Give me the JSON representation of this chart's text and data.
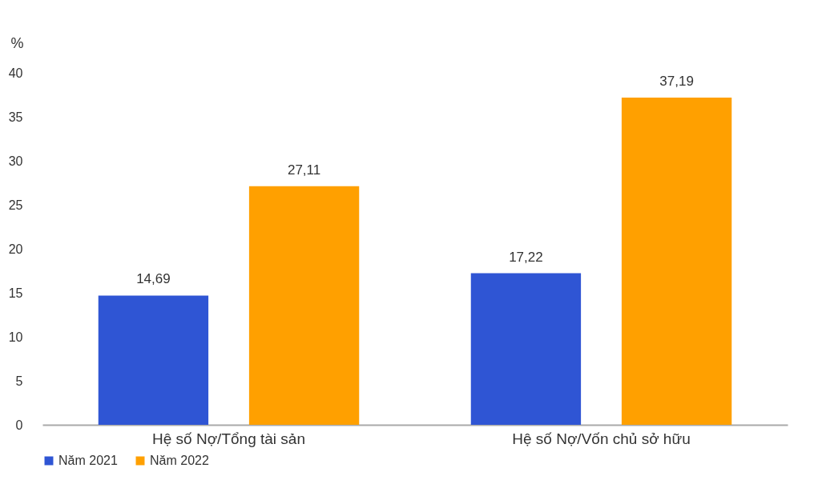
{
  "chart_data": {
    "type": "bar",
    "ylabel": "%",
    "categories": [
      "Hệ số Nợ/Tổng tài sản",
      "Hệ số Nợ/Vốn chủ sở hữu"
    ],
    "series": [
      {
        "name": "Năm 2021",
        "color": "#2f55d4",
        "values": [
          14.69,
          17.22
        ],
        "value_labels": [
          "14,69",
          "17,22"
        ]
      },
      {
        "name": "Năm 2022",
        "color": "#ffa000",
        "values": [
          27.11,
          37.19
        ],
        "value_labels": [
          "27,11",
          "37,19"
        ]
      }
    ],
    "ylim": [
      0,
      40
    ],
    "yticks": [
      0,
      5,
      10,
      15,
      20,
      25,
      30,
      35,
      40
    ],
    "grid": false,
    "legend": "bottom"
  }
}
